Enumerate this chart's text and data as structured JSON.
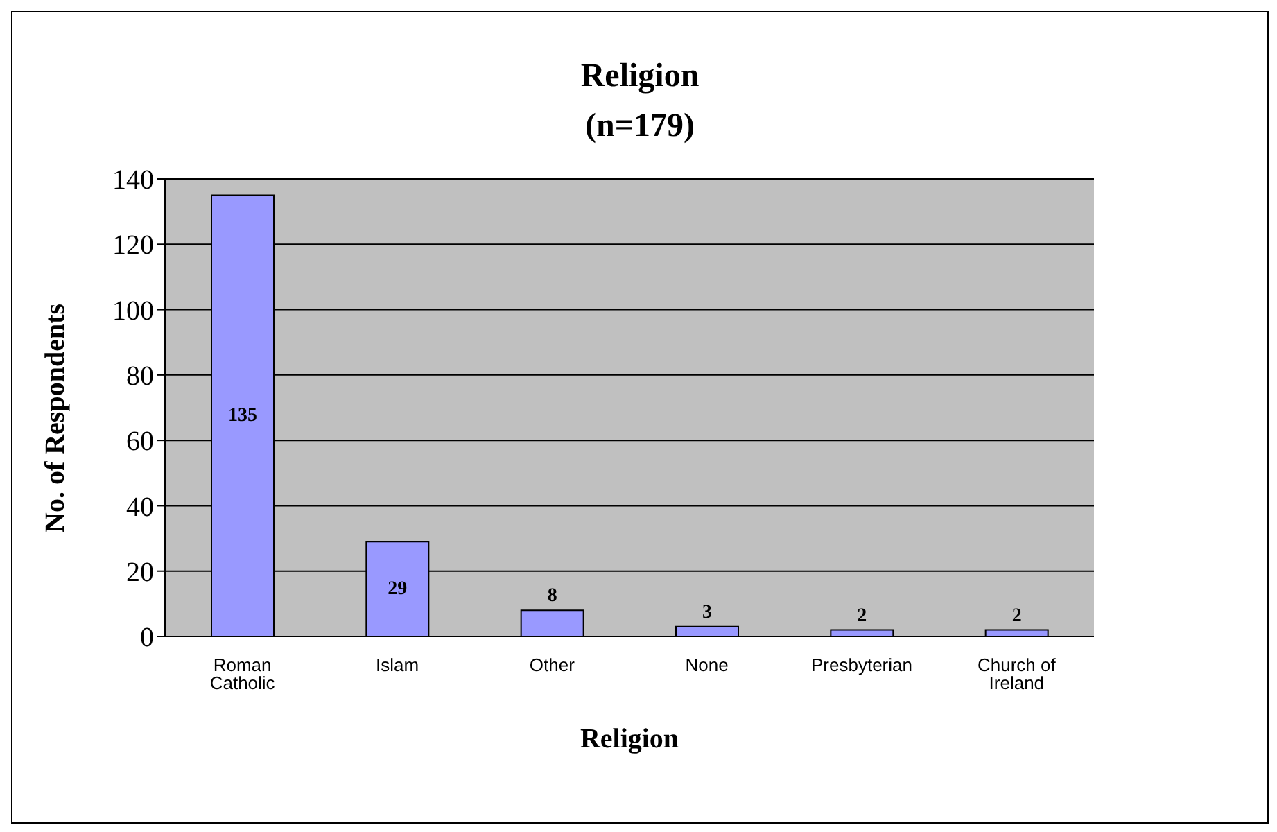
{
  "chart_data": {
    "type": "bar",
    "title": "Religion",
    "subtitle": "(n=179)",
    "xlabel": "Religion",
    "ylabel": "No. of Respondents",
    "categories": [
      "Roman Catholic",
      "Islam",
      "Other",
      "None",
      "Presbyterian",
      "Church of Ireland"
    ],
    "values": [
      135,
      29,
      8,
      3,
      2,
      2
    ],
    "color": "#9999ff",
    "ylim": [
      0,
      140
    ],
    "yticks": [
      0,
      20,
      40,
      60,
      80,
      100,
      120,
      140
    ],
    "grid": "y",
    "data_labels": true,
    "legend": false
  }
}
